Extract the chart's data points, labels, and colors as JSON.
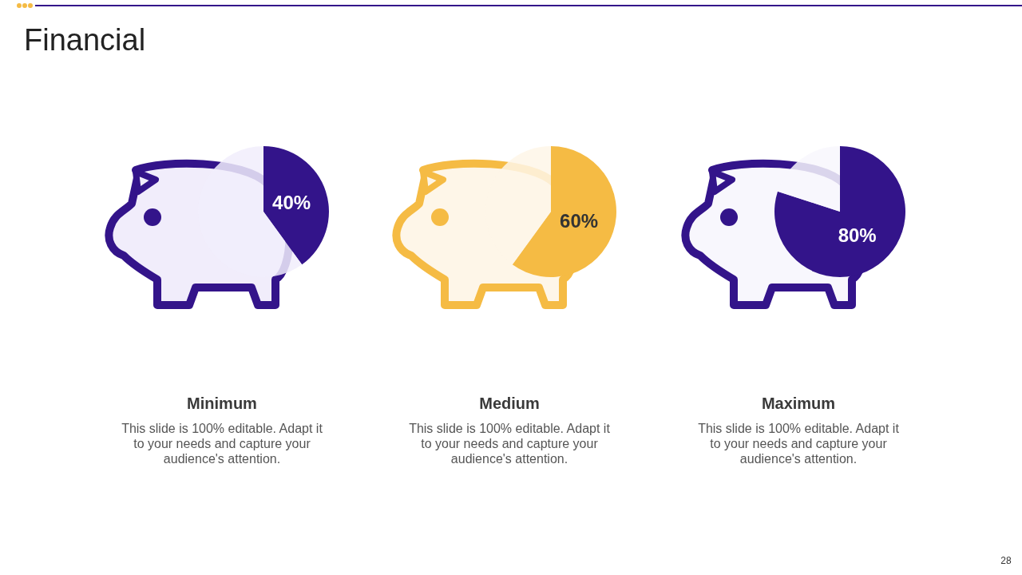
{
  "chart_data": [
    {
      "type": "other",
      "title": "Financial",
      "annotations": [
        "28"
      ]
    },
    {
      "type": "pie",
      "title": "Minimum",
      "categories": [
        null,
        null
      ],
      "values": [
        40,
        60
      ],
      "colors": [
        "#33148a",
        "#f1edfb"
      ],
      "value_labels": [
        "40%",
        null
      ],
      "annotations": [
        "This slide is 100% editable. Adapt it to your needs and capture your audience's attention."
      ]
    },
    {
      "type": "pie",
      "title": "Medium",
      "categories": [
        null,
        null
      ],
      "values": [
        60,
        40
      ],
      "colors": [
        "#f5bb44",
        "#fef6e8"
      ],
      "value_labels": [
        "60%",
        null
      ],
      "annotations": [
        "This slide is 100% editable. Adapt it to your needs and capture your audience's attention."
      ]
    },
    {
      "type": "pie",
      "title": "Maximum",
      "categories": [
        null,
        null
      ],
      "values": [
        80,
        20
      ],
      "colors": [
        "#33148a",
        "#f8f7fd"
      ],
      "value_labels": [
        "80%",
        null
      ],
      "annotations": [
        "This slide is 100% editable. Adapt it to your needs and capture your audience's attention."
      ]
    }
  ]
}
